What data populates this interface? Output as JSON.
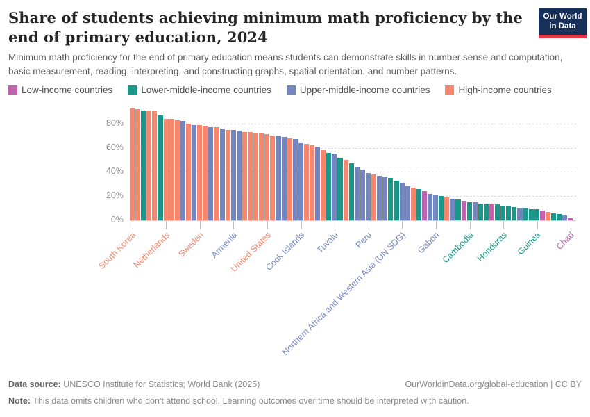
{
  "header": {
    "title": "Share of students achieving minimum math proficiency by the end of primary education, 2024",
    "subtitle": "Minimum math proficiency for the end of primary education means students can demonstrate skills in number sense and computation, basic measurement, reading, interpreting, and constructing graphs, spatial orientation, and number patterns."
  },
  "logo": {
    "line1": "Our World",
    "line2": "in Data",
    "bg_color": "#163059",
    "stripe_color": "#e0374c"
  },
  "colors": {
    "low": "#bf63ae",
    "lower_middle": "#1b9688",
    "upper_middle": "#7386bd",
    "high": "#f4876e"
  },
  "legend": [
    {
      "label": "Low-income countries",
      "group": "low"
    },
    {
      "label": "Lower-middle-income countries",
      "group": "lower_middle"
    },
    {
      "label": "Upper-middle-income countries",
      "group": "upper_middle"
    },
    {
      "label": "High-income countries",
      "group": "high"
    }
  ],
  "chart_data": {
    "type": "bar",
    "title": "Share of students achieving minimum math proficiency by the end of primary education, 2024",
    "unit": "%",
    "ylim": [
      0,
      100
    ],
    "yticks": [
      0,
      20,
      40,
      60,
      80
    ],
    "grid": "dashed horizontal",
    "legend_position": "top",
    "sort": "descending",
    "n_bars": 79,
    "bars": [
      {
        "value": 93,
        "group": "high"
      },
      {
        "value": 92,
        "group": "high"
      },
      {
        "value": 91,
        "group": "lower_middle"
      },
      {
        "value": 91,
        "group": "high"
      },
      {
        "value": 90,
        "group": "high"
      },
      {
        "value": 87,
        "group": "lower_middle"
      },
      {
        "value": 84,
        "group": "high"
      },
      {
        "value": 84,
        "group": "high"
      },
      {
        "value": 83,
        "group": "high"
      },
      {
        "value": 82,
        "group": "upper_middle"
      },
      {
        "value": 80,
        "group": "high"
      },
      {
        "value": 79,
        "group": "upper_middle"
      },
      {
        "value": 79,
        "group": "high"
      },
      {
        "value": 78,
        "group": "high"
      },
      {
        "value": 77,
        "group": "upper_middle"
      },
      {
        "value": 77,
        "group": "high"
      },
      {
        "value": 76,
        "group": "upper_middle"
      },
      {
        "value": 75,
        "group": "high"
      },
      {
        "value": 75,
        "group": "upper_middle"
      },
      {
        "value": 74,
        "group": "upper_middle"
      },
      {
        "value": 73,
        "group": "high"
      },
      {
        "value": 73,
        "group": "high"
      },
      {
        "value": 72,
        "group": "high"
      },
      {
        "value": 72,
        "group": "high"
      },
      {
        "value": 71,
        "group": "high"
      },
      {
        "value": 70,
        "group": "high"
      },
      {
        "value": 70,
        "group": "upper_middle"
      },
      {
        "value": 69,
        "group": "upper_middle"
      },
      {
        "value": 68,
        "group": "high"
      },
      {
        "value": 67,
        "group": "upper_middle"
      },
      {
        "value": 64,
        "group": "upper_middle"
      },
      {
        "value": 63,
        "group": "high"
      },
      {
        "value": 62,
        "group": "high"
      },
      {
        "value": 61,
        "group": "upper_middle"
      },
      {
        "value": 58,
        "group": "high"
      },
      {
        "value": 56,
        "group": "lower_middle"
      },
      {
        "value": 55,
        "group": "upper_middle"
      },
      {
        "value": 52,
        "group": "lower_middle"
      },
      {
        "value": 50,
        "group": "high"
      },
      {
        "value": 47,
        "group": "lower_middle"
      },
      {
        "value": 44,
        "group": "upper_middle"
      },
      {
        "value": 42,
        "group": "upper_middle"
      },
      {
        "value": 39,
        "group": "upper_middle"
      },
      {
        "value": 38,
        "group": "high"
      },
      {
        "value": 37,
        "group": "upper_middle"
      },
      {
        "value": 36,
        "group": "upper_middle"
      },
      {
        "value": 35,
        "group": "lower_middle"
      },
      {
        "value": 33,
        "group": "lower_middle"
      },
      {
        "value": 31,
        "group": "upper_middle"
      },
      {
        "value": 28,
        "group": "upper_middle"
      },
      {
        "value": 27,
        "group": "high"
      },
      {
        "value": 26,
        "group": "lower_middle"
      },
      {
        "value": 24,
        "group": "low"
      },
      {
        "value": 22,
        "group": "upper_middle"
      },
      {
        "value": 21,
        "group": "upper_middle"
      },
      {
        "value": 20,
        "group": "lower_middle"
      },
      {
        "value": 19,
        "group": "high"
      },
      {
        "value": 18,
        "group": "upper_middle"
      },
      {
        "value": 17,
        "group": "lower_middle"
      },
      {
        "value": 16,
        "group": "low"
      },
      {
        "value": 15,
        "group": "lower_middle"
      },
      {
        "value": 15,
        "group": "upper_middle"
      },
      {
        "value": 14,
        "group": "lower_middle"
      },
      {
        "value": 14,
        "group": "lower_middle"
      },
      {
        "value": 13,
        "group": "low"
      },
      {
        "value": 13,
        "group": "lower_middle"
      },
      {
        "value": 12,
        "group": "lower_middle"
      },
      {
        "value": 12,
        "group": "lower_middle"
      },
      {
        "value": 11,
        "group": "lower_middle"
      },
      {
        "value": 10,
        "group": "upper_middle"
      },
      {
        "value": 10,
        "group": "lower_middle"
      },
      {
        "value": 9,
        "group": "lower_middle"
      },
      {
        "value": 9,
        "group": "lower_middle"
      },
      {
        "value": 8,
        "group": "low"
      },
      {
        "value": 7,
        "group": "high"
      },
      {
        "value": 6,
        "group": "lower_middle"
      },
      {
        "value": 5,
        "group": "lower_middle"
      },
      {
        "value": 4,
        "group": "upper_middle"
      },
      {
        "value": 2,
        "group": "low"
      }
    ],
    "tick_labels": [
      {
        "index": 0,
        "label": "South Korea"
      },
      {
        "index": 6,
        "label": "Netherlands"
      },
      {
        "index": 12,
        "label": "Sweden"
      },
      {
        "index": 18,
        "label": "Armenia"
      },
      {
        "index": 24,
        "label": "United States"
      },
      {
        "index": 30,
        "label": "Cook Islands"
      },
      {
        "index": 36,
        "label": "Tuvalu"
      },
      {
        "index": 42,
        "label": "Peru"
      },
      {
        "index": 48,
        "label": "Northern Africa and Western Asia (UN SDG)"
      },
      {
        "index": 54,
        "label": "Gabon"
      },
      {
        "index": 60,
        "label": "Cambodia"
      },
      {
        "index": 66,
        "label": "Honduras"
      },
      {
        "index": 72,
        "label": "Guinea"
      },
      {
        "index": 78,
        "label": "Chad"
      }
    ]
  },
  "footer": {
    "source_label": "Data source:",
    "source_text": " UNESCO Institute for Statistics; World Bank (2025)",
    "right_text": "OurWorldinData.org/global-education | CC BY",
    "note_label": "Note:",
    "note_text": " This data omits children who don't attend school. Learning outcomes over time should be interpreted with caution."
  }
}
